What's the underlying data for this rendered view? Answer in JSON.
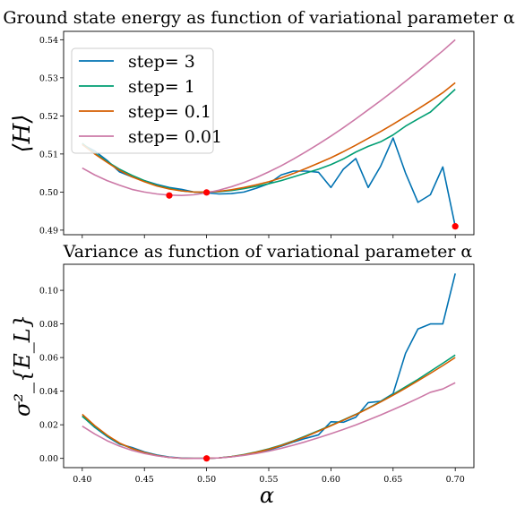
{
  "colors": {
    "step= 3": "#0072b2",
    "step= 1": "#009e73",
    "step= 0.1": "#d55e00",
    "step= 0.01": "#cc79a7",
    "marker": "#ff0000"
  },
  "chart_data": [
    {
      "type": "line",
      "title": "Ground state energy as function of variational parameter α",
      "ylabel": "⟨H⟩",
      "xlabel": "",
      "xlim": [
        0.385,
        0.715
      ],
      "ylim": [
        0.4888,
        0.5422
      ],
      "xticks": [
        0.4,
        0.45,
        0.5,
        0.55,
        0.6,
        0.65,
        0.7
      ],
      "xtick_labels_visible": false,
      "yticks": [
        0.49,
        0.5,
        0.51,
        0.52,
        0.53,
        0.54
      ],
      "ytick_labels": [
        "0.49",
        "0.50",
        "0.51",
        "0.52",
        "0.53",
        "0.54"
      ],
      "grid": false,
      "legend": "top-left",
      "x": [
        0.4,
        0.41,
        0.42,
        0.43,
        0.44,
        0.45,
        0.46,
        0.47,
        0.48,
        0.49,
        0.5,
        0.51,
        0.52,
        0.53,
        0.54,
        0.55,
        0.56,
        0.57,
        0.58,
        0.59,
        0.6,
        0.61,
        0.62,
        0.63,
        0.64,
        0.65,
        0.66,
        0.67,
        0.68,
        0.69,
        0.7
      ],
      "series": [
        {
          "name": "step= 3",
          "values": [
            0.5125,
            0.5108,
            0.5083,
            0.5053,
            0.504,
            0.503,
            0.502,
            0.5012,
            0.5007,
            0.5,
            0.4998,
            0.4995,
            0.4996,
            0.5,
            0.501,
            0.5022,
            0.5045,
            0.5055,
            0.5055,
            0.5052,
            0.5012,
            0.506,
            0.5088,
            0.5012,
            0.5068,
            0.5142,
            0.505,
            0.4973,
            0.4993,
            0.5066,
            0.491
          ]
        },
        {
          "name": "step= 1",
          "values": [
            0.5128,
            0.5102,
            0.508,
            0.506,
            0.5044,
            0.503,
            0.5018,
            0.501,
            0.5003,
            0.5,
            0.5,
            0.5001,
            0.5004,
            0.5009,
            0.5015,
            0.5022,
            0.503,
            0.504,
            0.505,
            0.506,
            0.5072,
            0.5087,
            0.5105,
            0.512,
            0.5132,
            0.515,
            0.5173,
            0.5192,
            0.521,
            0.524,
            0.527
          ]
        },
        {
          "name": "step= 0.1",
          "values": [
            0.5125,
            0.51,
            0.5078,
            0.5057,
            0.504,
            0.5027,
            0.5016,
            0.5008,
            0.5003,
            0.5,
            0.5,
            0.5002,
            0.5006,
            0.5012,
            0.5019,
            0.5027,
            0.5037,
            0.5049,
            0.5062,
            0.5076,
            0.509,
            0.5106,
            0.5123,
            0.5141,
            0.5159,
            0.5178,
            0.5198,
            0.5218,
            0.5239,
            0.5261,
            0.5287
          ]
        },
        {
          "name": "step= 0.01",
          "values": [
            0.5063,
            0.5045,
            0.503,
            0.5018,
            0.5007,
            0.5,
            0.4995,
            0.4992,
            0.4991,
            0.4993,
            0.4998,
            0.5005,
            0.5014,
            0.5025,
            0.5038,
            0.5053,
            0.5069,
            0.5087,
            0.5106,
            0.5126,
            0.5147,
            0.5169,
            0.5192,
            0.5216,
            0.524,
            0.5265,
            0.5291,
            0.5317,
            0.5344,
            0.5371,
            0.54
          ]
        }
      ],
      "minima": [
        {
          "x": 0.47,
          "y": 0.4991
        },
        {
          "x": 0.5,
          "y": 0.4999
        },
        {
          "x": 0.7,
          "y": 0.491
        }
      ]
    },
    {
      "type": "line",
      "title": "Variance as function of variational parameter α",
      "ylabel": "σ²_{E_L}",
      "xlabel": "α",
      "xlim": [
        0.385,
        0.715
      ],
      "ylim": [
        -0.0055,
        0.1155
      ],
      "xticks": [
        0.4,
        0.45,
        0.5,
        0.55,
        0.6,
        0.65,
        0.7
      ],
      "xtick_labels": [
        "0.40",
        "0.45",
        "0.50",
        "0.55",
        "0.60",
        "0.65",
        "0.70"
      ],
      "yticks": [
        0.0,
        0.02,
        0.04,
        0.06,
        0.08,
        0.1
      ],
      "ytick_labels": [
        "0.00",
        "0.02",
        "0.04",
        "0.06",
        "0.08",
        "0.10"
      ],
      "grid": false,
      "x": [
        0.4,
        0.41,
        0.42,
        0.43,
        0.44,
        0.45,
        0.46,
        0.47,
        0.48,
        0.49,
        0.5,
        0.51,
        0.52,
        0.53,
        0.54,
        0.55,
        0.56,
        0.57,
        0.58,
        0.59,
        0.6,
        0.61,
        0.62,
        0.63,
        0.64,
        0.65,
        0.66,
        0.67,
        0.68,
        0.69,
        0.7
      ],
      "series": [
        {
          "name": "step= 3",
          "values": [
            0.0252,
            0.0185,
            0.013,
            0.0085,
            0.0065,
            0.0038,
            0.002,
            0.0008,
            0.0002,
            0.0,
            0.0,
            0.0003,
            0.001,
            0.002,
            0.0033,
            0.005,
            0.0072,
            0.0098,
            0.012,
            0.014,
            0.0218,
            0.0215,
            0.0245,
            0.0332,
            0.034,
            0.0385,
            0.0625,
            0.077,
            0.08,
            0.08,
            0.11
          ]
        },
        {
          "name": "step= 1",
          "values": [
            0.025,
            0.0188,
            0.0134,
            0.0089,
            0.0058,
            0.0034,
            0.0017,
            0.0006,
            0.0001,
            0.0,
            0.0,
            0.0003,
            0.0011,
            0.0023,
            0.0038,
            0.0057,
            0.0079,
            0.0105,
            0.0134,
            0.0165,
            0.0196,
            0.0229,
            0.0262,
            0.0299,
            0.0338,
            0.0381,
            0.0426,
            0.047,
            0.0518,
            0.0566,
            0.0615
          ]
        },
        {
          "name": "step= 0.1",
          "values": [
            0.0262,
            0.0195,
            0.0138,
            0.0091,
            0.0059,
            0.0034,
            0.0017,
            0.0006,
            0.0001,
            0.0,
            0.0,
            0.0003,
            0.001,
            0.0021,
            0.0036,
            0.0054,
            0.0076,
            0.0102,
            0.013,
            0.0162,
            0.0194,
            0.0227,
            0.026,
            0.0297,
            0.0336,
            0.0376,
            0.0418,
            0.0462,
            0.0506,
            0.0552,
            0.06
          ]
        },
        {
          "name": "step= 0.01",
          "values": [
            0.0192,
            0.0145,
            0.0105,
            0.0073,
            0.0048,
            0.0029,
            0.0015,
            0.0006,
            0.0001,
            0.0,
            0.0,
            0.0003,
            0.0009,
            0.0018,
            0.0029,
            0.0043,
            0.006,
            0.0079,
            0.01,
            0.0123,
            0.0147,
            0.0172,
            0.0199,
            0.0228,
            0.0258,
            0.029,
            0.0323,
            0.0357,
            0.0393,
            0.0413,
            0.045
          ]
        }
      ],
      "minima": [
        {
          "x": 0.5,
          "y": 0.0
        }
      ]
    }
  ]
}
